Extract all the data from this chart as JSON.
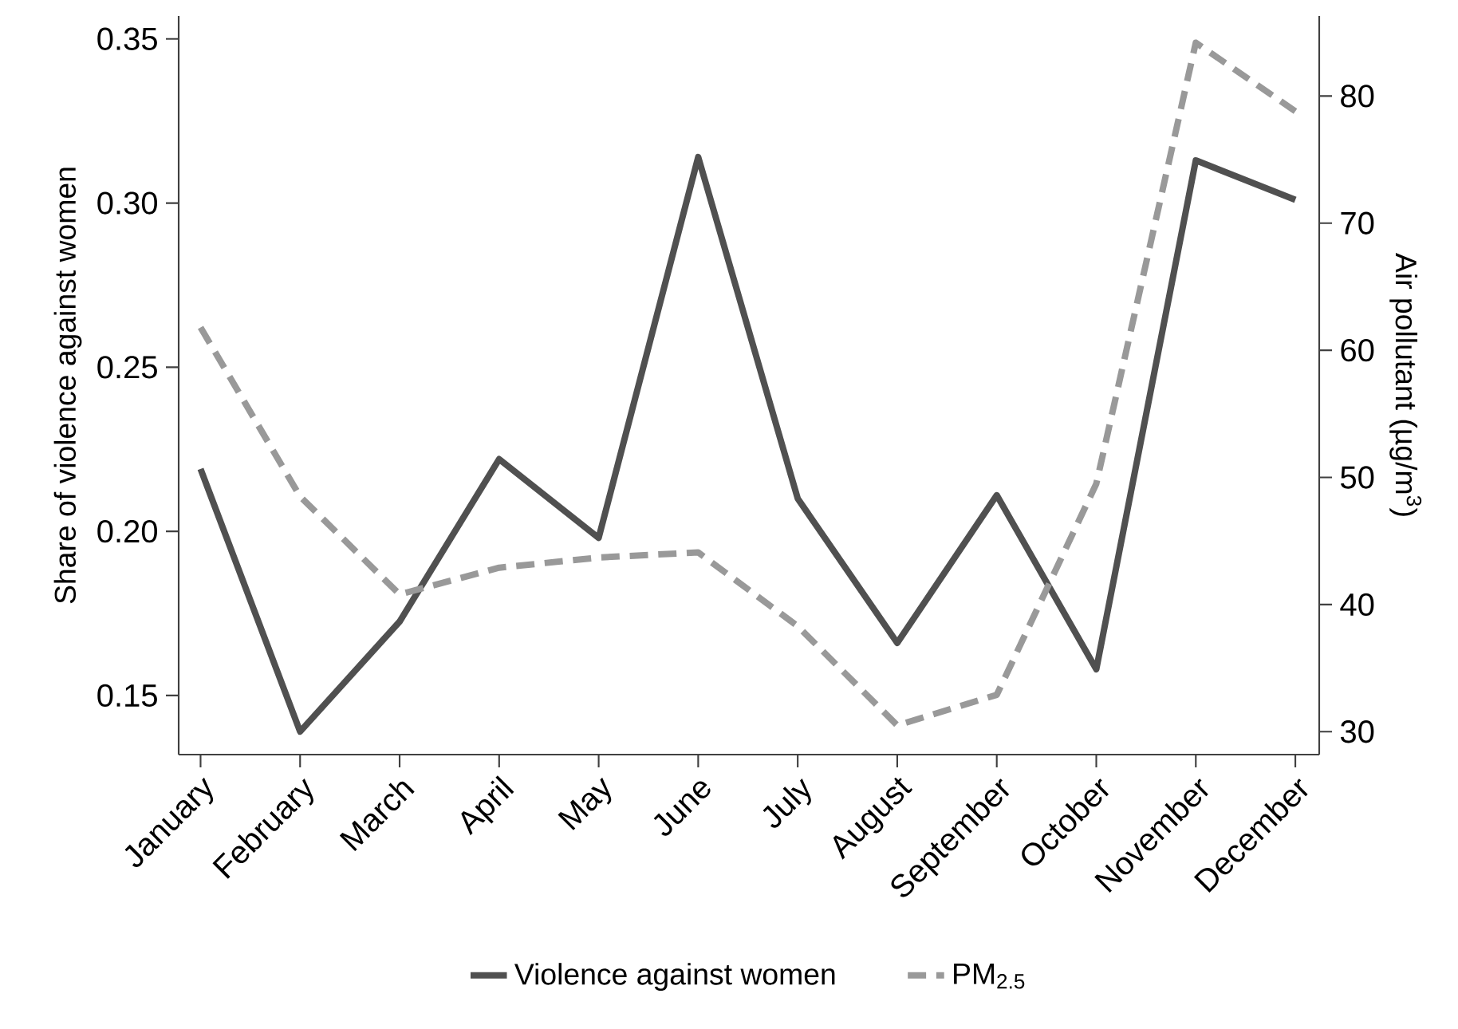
{
  "chart_data": {
    "type": "line",
    "categories": [
      "January",
      "February",
      "March",
      "April",
      "May",
      "June",
      "July",
      "August",
      "September",
      "October",
      "November",
      "December"
    ],
    "ylabel": "Share of violence against women",
    "y2label": "Air pollutant (µg/m$^{3}$)",
    "ylim": [
      0.132,
      0.357
    ],
    "yticks": [
      0.15,
      {
        "value": 0.2,
        "label": "0.20"
      },
      0.25,
      {
        "value": 0.3,
        "label": "0.30"
      },
      0.35
    ],
    "y2lim": [
      28.2,
      86.3
    ],
    "y2ticks": [
      30,
      40,
      50,
      60,
      70,
      80
    ],
    "series": [
      {
        "name": "Violence against women",
        "color": "#505050",
        "line_style": "solid",
        "values": [
          0.219,
          0.139,
          0.1725,
          0.222,
          0.198,
          0.314,
          0.21,
          0.166,
          0.211,
          0.158,
          0.313,
          0.301
        ]
      },
      {
        "name": "PM$_{2.5}$",
        "color": "#999999",
        "line_style": "dashed",
        "axis": "y2",
        "values": [
          61.8,
          48.5,
          40.8,
          42.9,
          43.7,
          44.1,
          38.3,
          30.5,
          32.9,
          49.5,
          84.2,
          78.8
        ]
      }
    ],
    "grid": false,
    "legend": "bottom",
    "marker": "none"
  }
}
